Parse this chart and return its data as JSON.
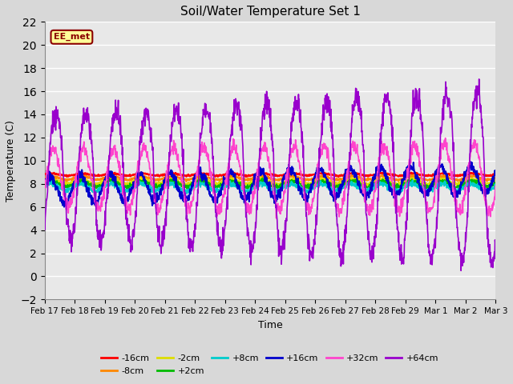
{
  "title": "Soil/Water Temperature Set 1",
  "xlabel": "Time",
  "ylabel": "Temperature (C)",
  "ylim": [
    -2,
    22
  ],
  "yticks": [
    -2,
    0,
    2,
    4,
    6,
    8,
    10,
    12,
    14,
    16,
    18,
    20,
    22
  ],
  "plot_bg_color": "#e8e8e8",
  "fig_bg_color": "#d8d8d8",
  "grid_color": "#ffffff",
  "annotation_text": "EE_met",
  "annotation_bg": "#ffff99",
  "annotation_border": "#8B0000",
  "line_colors": {
    "-16cm": "#ff0000",
    "-8cm": "#ff8800",
    "-2cm": "#dddd00",
    "+2cm": "#00bb00",
    "+8cm": "#00cccc",
    "+16cm": "#0000cc",
    "+32cm": "#ff44cc",
    "+64cm": "#9900cc"
  },
  "x_labels": [
    "Feb 17",
    "Feb 18",
    "Feb 19",
    "Feb 20",
    "Feb 21",
    "Feb 22",
    "Feb 23",
    "Feb 24",
    "Feb 25",
    "Feb 26",
    "Feb 27",
    "Feb 28",
    "Feb 29",
    "Mar 1",
    "Mar 2",
    "Mar 3"
  ]
}
